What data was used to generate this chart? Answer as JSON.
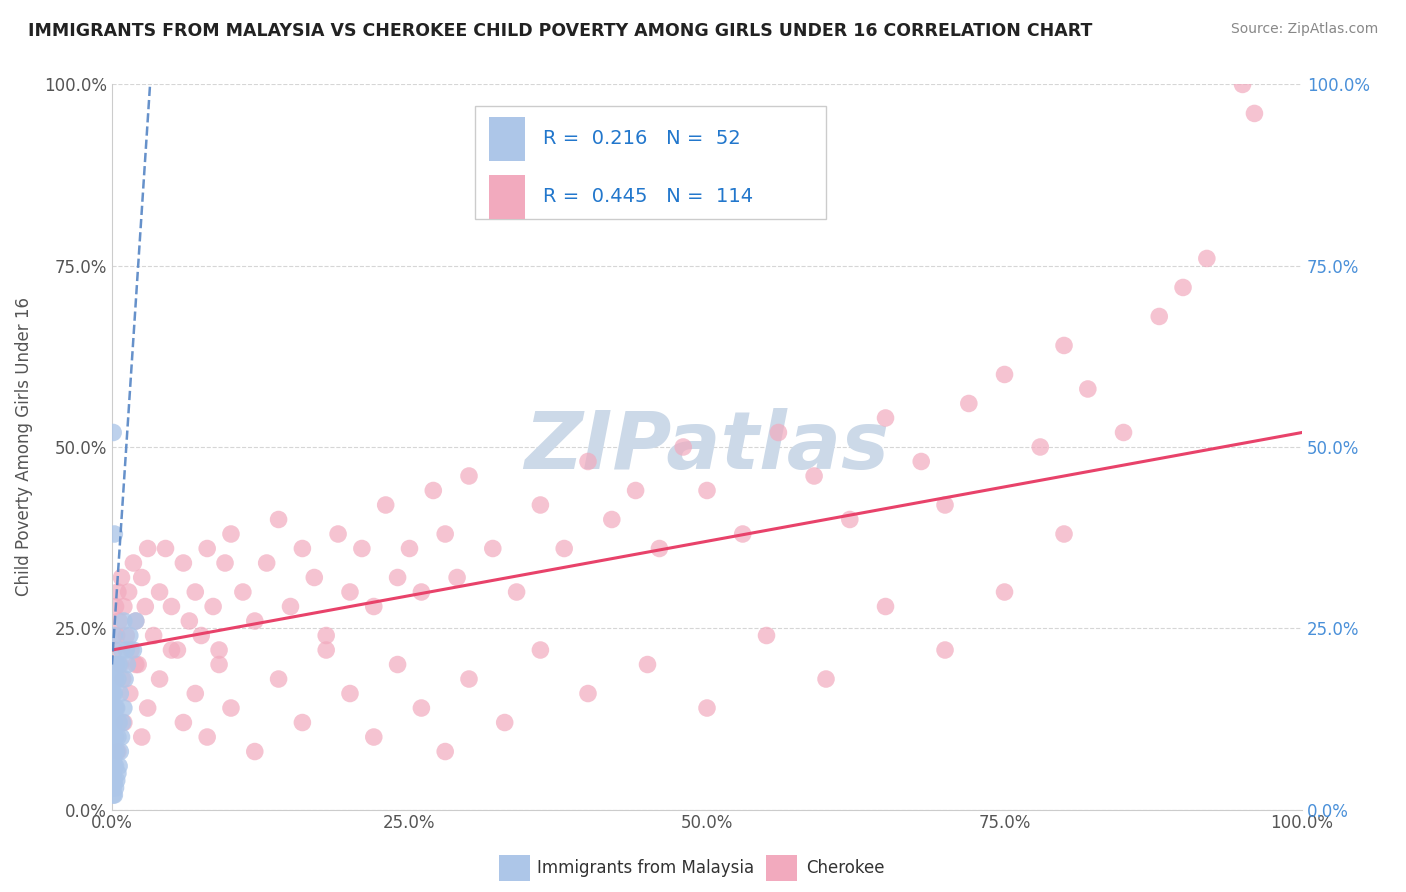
{
  "title": "IMMIGRANTS FROM MALAYSIA VS CHEROKEE CHILD POVERTY AMONG GIRLS UNDER 16 CORRELATION CHART",
  "source": "Source: ZipAtlas.com",
  "ylabel": "Child Poverty Among Girls Under 16",
  "legend_label_blue": "Immigrants from Malaysia",
  "legend_label_pink": "Cherokee",
  "blue_R": 0.216,
  "blue_N": 52,
  "pink_R": 0.445,
  "pink_N": 114,
  "blue_color": "#adc6e8",
  "pink_color": "#f2aabe",
  "blue_line_color": "#5585c5",
  "pink_line_color": "#e8426a",
  "watermark": "ZIPatlas",
  "watermark_color": "#ccd9e8",
  "x_ticks": [
    0.0,
    0.25,
    0.5,
    0.75,
    1.0
  ],
  "x_tick_labels": [
    "0.0%",
    "25.0%",
    "50.0%",
    "75.0%",
    "100.0%"
  ],
  "y_ticks": [
    0.0,
    0.25,
    0.5,
    0.75,
    1.0
  ],
  "y_tick_labels": [
    "0.0%",
    "25.0%",
    "50.0%",
    "75.0%",
    "100.0%"
  ],
  "blue_points_x": [
    0.001,
    0.001,
    0.001,
    0.001,
    0.001,
    0.001,
    0.001,
    0.001,
    0.001,
    0.001,
    0.001,
    0.001,
    0.001,
    0.001,
    0.002,
    0.002,
    0.002,
    0.002,
    0.002,
    0.002,
    0.002,
    0.002,
    0.003,
    0.003,
    0.003,
    0.003,
    0.003,
    0.004,
    0.004,
    0.004,
    0.004,
    0.005,
    0.005,
    0.005,
    0.006,
    0.006,
    0.006,
    0.007,
    0.007,
    0.008,
    0.008,
    0.009,
    0.01,
    0.01,
    0.011,
    0.012,
    0.013,
    0.015,
    0.018,
    0.02,
    0.001,
    0.002
  ],
  "blue_points_y": [
    0.02,
    0.03,
    0.04,
    0.05,
    0.06,
    0.07,
    0.08,
    0.09,
    0.1,
    0.11,
    0.12,
    0.14,
    0.16,
    0.18,
    0.02,
    0.04,
    0.06,
    0.08,
    0.12,
    0.16,
    0.2,
    0.24,
    0.03,
    0.06,
    0.1,
    0.14,
    0.18,
    0.04,
    0.08,
    0.14,
    0.2,
    0.05,
    0.1,
    0.18,
    0.06,
    0.12,
    0.2,
    0.08,
    0.16,
    0.1,
    0.22,
    0.12,
    0.14,
    0.26,
    0.18,
    0.22,
    0.2,
    0.24,
    0.22,
    0.26,
    0.52,
    0.38
  ],
  "pink_points_x": [
    0.002,
    0.003,
    0.004,
    0.005,
    0.006,
    0.007,
    0.008,
    0.009,
    0.01,
    0.012,
    0.014,
    0.016,
    0.018,
    0.02,
    0.022,
    0.025,
    0.028,
    0.03,
    0.035,
    0.04,
    0.045,
    0.05,
    0.055,
    0.06,
    0.065,
    0.07,
    0.075,
    0.08,
    0.085,
    0.09,
    0.095,
    0.1,
    0.11,
    0.12,
    0.13,
    0.14,
    0.15,
    0.16,
    0.17,
    0.18,
    0.19,
    0.2,
    0.21,
    0.22,
    0.23,
    0.24,
    0.25,
    0.26,
    0.27,
    0.28,
    0.29,
    0.3,
    0.32,
    0.34,
    0.36,
    0.38,
    0.4,
    0.42,
    0.44,
    0.46,
    0.48,
    0.5,
    0.53,
    0.56,
    0.59,
    0.62,
    0.65,
    0.68,
    0.7,
    0.72,
    0.75,
    0.78,
    0.8,
    0.82,
    0.85,
    0.88,
    0.9,
    0.92,
    0.95,
    0.96,
    0.005,
    0.01,
    0.015,
    0.02,
    0.025,
    0.03,
    0.04,
    0.05,
    0.06,
    0.07,
    0.08,
    0.09,
    0.1,
    0.12,
    0.14,
    0.16,
    0.18,
    0.2,
    0.22,
    0.24,
    0.26,
    0.28,
    0.3,
    0.33,
    0.36,
    0.4,
    0.45,
    0.5,
    0.55,
    0.6,
    0.65,
    0.7,
    0.75,
    0.8
  ],
  "pink_points_y": [
    0.22,
    0.28,
    0.24,
    0.3,
    0.26,
    0.2,
    0.32,
    0.18,
    0.28,
    0.24,
    0.3,
    0.22,
    0.34,
    0.26,
    0.2,
    0.32,
    0.28,
    0.36,
    0.24,
    0.3,
    0.36,
    0.28,
    0.22,
    0.34,
    0.26,
    0.3,
    0.24,
    0.36,
    0.28,
    0.22,
    0.34,
    0.38,
    0.3,
    0.26,
    0.34,
    0.4,
    0.28,
    0.36,
    0.32,
    0.24,
    0.38,
    0.3,
    0.36,
    0.28,
    0.42,
    0.32,
    0.36,
    0.3,
    0.44,
    0.38,
    0.32,
    0.46,
    0.36,
    0.3,
    0.42,
    0.36,
    0.48,
    0.4,
    0.44,
    0.36,
    0.5,
    0.44,
    0.38,
    0.52,
    0.46,
    0.4,
    0.54,
    0.48,
    0.42,
    0.56,
    0.6,
    0.5,
    0.64,
    0.58,
    0.52,
    0.68,
    0.72,
    0.76,
    1.0,
    0.96,
    0.08,
    0.12,
    0.16,
    0.2,
    0.1,
    0.14,
    0.18,
    0.22,
    0.12,
    0.16,
    0.1,
    0.2,
    0.14,
    0.08,
    0.18,
    0.12,
    0.22,
    0.16,
    0.1,
    0.2,
    0.14,
    0.08,
    0.18,
    0.12,
    0.22,
    0.16,
    0.2,
    0.14,
    0.24,
    0.18,
    0.28,
    0.22,
    0.3,
    0.38
  ],
  "pink_line_intercept": 0.22,
  "pink_line_slope": 0.3,
  "blue_line_intercept": 0.2,
  "blue_line_slope": 25.0
}
